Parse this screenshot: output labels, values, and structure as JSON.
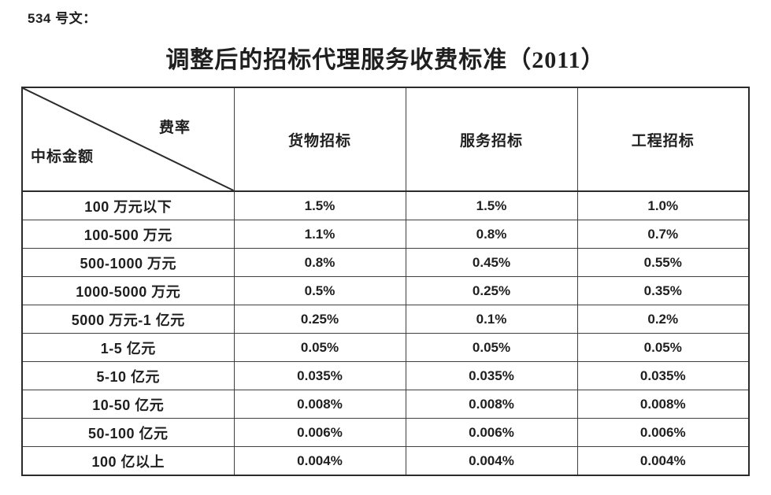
{
  "doc_number": "534 号文：",
  "title": "调整后的招标代理服务收费标准（2011）",
  "table": {
    "corner": {
      "top_right_label": "费率",
      "bottom_left_label": "中标金额"
    },
    "columns": [
      "货物招标",
      "服务招标",
      "工程招标"
    ],
    "rows": [
      {
        "label": "100 万元以下",
        "values": [
          "1.5%",
          "1.5%",
          "1.0%"
        ]
      },
      {
        "label": "100-500 万元",
        "values": [
          "1.1%",
          "0.8%",
          "0.7%"
        ]
      },
      {
        "label": "500-1000 万元",
        "values": [
          "0.8%",
          "0.45%",
          "0.55%"
        ]
      },
      {
        "label": "1000-5000 万元",
        "values": [
          "0.5%",
          "0.25%",
          "0.35%"
        ]
      },
      {
        "label": "5000 万元-1 亿元",
        "values": [
          "0.25%",
          "0.1%",
          "0.2%"
        ]
      },
      {
        "label": "1-5 亿元",
        "values": [
          "0.05%",
          "0.05%",
          "0.05%"
        ]
      },
      {
        "label": "5-10 亿元",
        "values": [
          "0.035%",
          "0.035%",
          "0.035%"
        ]
      },
      {
        "label": "10-50 亿元",
        "values": [
          "0.008%",
          "0.008%",
          "0.008%"
        ]
      },
      {
        "label": "50-100 亿元",
        "values": [
          "0.006%",
          "0.006%",
          "0.006%"
        ]
      },
      {
        "label": "100 亿以上",
        "values": [
          "0.004%",
          "0.004%",
          "0.004%"
        ]
      }
    ]
  },
  "colors": {
    "text": "#1f1f1f",
    "border_inner": "#3f3f3f",
    "border_outer": "#2b2b2b",
    "background": "#ffffff"
  }
}
